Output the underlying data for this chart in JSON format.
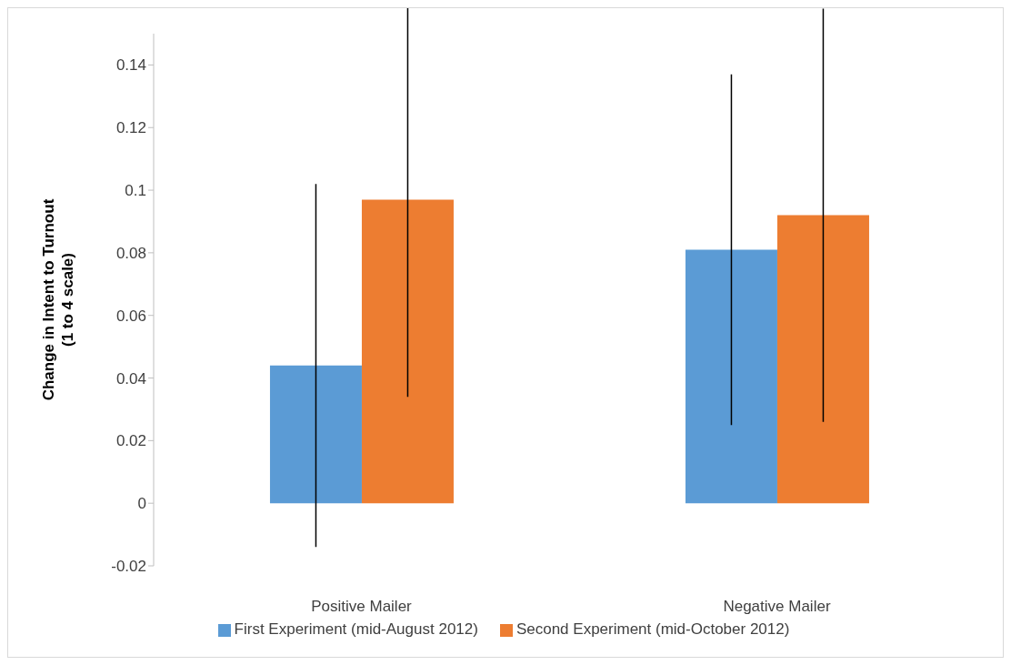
{
  "chart_data": {
    "type": "bar",
    "ylabel": "Change in Intent to Turnout\n(1 to 4 scale)",
    "categories": [
      "Positive Mailer",
      "Negative Mailer"
    ],
    "series": [
      {
        "name": "First Experiment (mid-August 2012)",
        "color": "#5b9bd5",
        "values": [
          0.044,
          0.081
        ],
        "errors": [
          0.058,
          0.056
        ]
      },
      {
        "name": "Second Experiment (mid-October 2012)",
        "color": "#ed7d31",
        "values": [
          0.097,
          0.092
        ],
        "errors": [
          0.063,
          0.066
        ]
      }
    ],
    "ylim": [
      -0.02,
      0.15
    ],
    "yticks": [
      -0.02,
      0,
      0.02,
      0.04,
      0.06,
      0.08,
      0.1,
      0.12,
      0.14
    ],
    "legend": "bottom"
  }
}
